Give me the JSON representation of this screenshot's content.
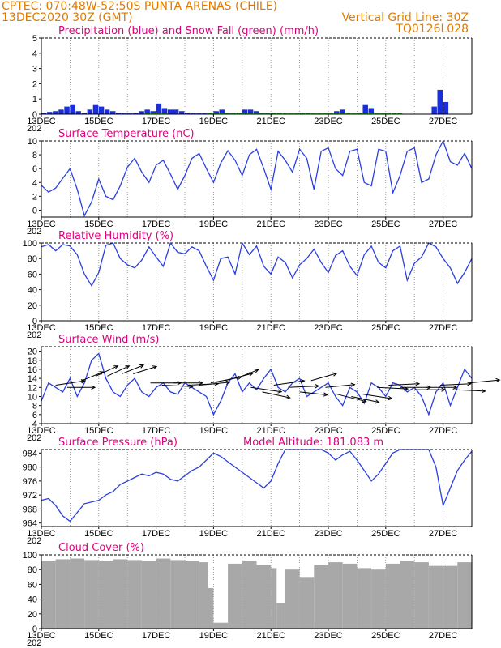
{
  "header": {
    "left_line1": "CPTEC:   070:48W-52:50S   PUNTA ARENAS (CHILE)",
    "left_line2": "13DEC2020 30Z (GMT)",
    "right_line2": "Vertical Grid Line: 30Z",
    "right_line3": "TQ0126L028"
  },
  "x_axis": {
    "year_label": "202",
    "day_labels": [
      "13DEC",
      "15DEC",
      "17DEC",
      "19DEC",
      "21DEC",
      "23DEC",
      "25DEC",
      "27DEC"
    ]
  },
  "colors": {
    "header": "#e07b00",
    "title": "#e0007e",
    "line": "#2a3fe0",
    "precip": "#1a2fd9",
    "snow": "#22aa22",
    "cloud": "#a8a8a8",
    "arrow": "#000000"
  },
  "chart_data": [
    {
      "type": "bar",
      "name": "precip",
      "title": "Precipitation (blue) and Snow Fall (green) (mm/h)",
      "ylim": [
        0,
        5
      ],
      "yticks": [
        "0",
        "1",
        "2",
        "3",
        "4",
        "5"
      ],
      "grid": true,
      "series": [
        {
          "name": "Precipitation",
          "x": [
            13.0,
            13.2,
            13.4,
            13.6,
            13.8,
            14.0,
            14.2,
            14.4,
            14.6,
            14.8,
            15.0,
            15.2,
            15.4,
            15.6,
            15.8,
            16.0,
            16.2,
            16.4,
            16.6,
            16.8,
            17.0,
            17.2,
            17.4,
            17.6,
            17.8,
            18.0,
            18.2,
            18.4,
            18.6,
            18.8,
            19.0,
            19.2,
            19.4,
            19.6,
            19.8,
            20.0,
            20.2,
            20.4,
            20.6,
            20.8,
            21.0,
            21.2,
            21.4,
            21.6,
            21.8,
            22.0,
            22.2,
            22.4,
            22.6,
            22.8,
            23.0,
            23.2,
            23.4,
            23.6,
            23.8,
            24.0,
            24.2,
            24.4,
            24.6,
            24.8,
            25.0,
            25.2,
            25.4,
            25.6,
            25.8,
            26.0,
            26.2,
            26.4,
            26.6,
            26.8,
            27.0,
            27.2,
            27.4,
            27.6,
            27.8
          ],
          "values": [
            0.1,
            0.15,
            0.2,
            0.3,
            0.5,
            0.6,
            0.2,
            0.1,
            0.3,
            0.6,
            0.5,
            0.3,
            0.2,
            0.1,
            0.05,
            0.05,
            0.1,
            0.2,
            0.3,
            0.2,
            0.7,
            0.4,
            0.3,
            0.3,
            0.2,
            0.1,
            0.05,
            0.05,
            0.05,
            0.05,
            0.2,
            0.3,
            0.05,
            0.05,
            0.05,
            0.3,
            0.3,
            0.2,
            0.05,
            0.05,
            0.0,
            0.0,
            0.0,
            0.0,
            0.0,
            0.0,
            0.05,
            0.0,
            0.0,
            0.0,
            0.0,
            0.2,
            0.3,
            0.0,
            0.0,
            0.0,
            0.6,
            0.4,
            0.0,
            0.0,
            0.0,
            0.0,
            0.0,
            0.0,
            0.0,
            0.0,
            0.0,
            0.0,
            0.5,
            1.6,
            0.8,
            0.0,
            0.0,
            0.0,
            0.0
          ]
        },
        {
          "name": "Snow Fall",
          "x": [
            16.6,
            16.8,
            17.0,
            17.2,
            18.8,
            19.0,
            19.2,
            19.4,
            19.6,
            19.8,
            20.0,
            20.2,
            20.4,
            20.6,
            20.8,
            21.0,
            21.2,
            21.4,
            21.6,
            21.8,
            22.0,
            22.2,
            22.4,
            22.6,
            22.8,
            23.0,
            23.2,
            23.4,
            23.6,
            23.8,
            24.0,
            24.2,
            24.4,
            24.6,
            24.8,
            25.0,
            25.2,
            25.4
          ],
          "values": [
            0.05,
            0.1,
            0.1,
            0.05,
            0.05,
            0.05,
            0.1,
            0.05,
            0.05,
            0.1,
            0.05,
            0.05,
            0.05,
            0.05,
            0.05,
            0.1,
            0.1,
            0.05,
            0.05,
            0.05,
            0.1,
            0.05,
            0.05,
            0.05,
            0.05,
            0.05,
            0.05,
            0.1,
            0.05,
            0.05,
            0.05,
            0.05,
            0.1,
            0.05,
            0.05,
            0.05,
            0.1,
            0.05
          ]
        }
      ]
    },
    {
      "type": "line",
      "name": "temperature",
      "title": "Surface Temperature (nC)",
      "ylim": [
        -1,
        10
      ],
      "yticks": [
        "0",
        "2",
        "4",
        "6",
        "8",
        "10"
      ],
      "grid": true,
      "x": [
        13.0,
        13.25,
        13.5,
        13.75,
        14.0,
        14.25,
        14.5,
        14.75,
        15.0,
        15.25,
        15.5,
        15.75,
        16.0,
        16.25,
        16.5,
        16.75,
        17.0,
        17.25,
        17.5,
        17.75,
        18.0,
        18.25,
        18.5,
        18.75,
        19.0,
        19.25,
        19.5,
        19.75,
        20.0,
        20.25,
        20.5,
        20.75,
        21.0,
        21.25,
        21.5,
        21.75,
        22.0,
        22.25,
        22.5,
        22.75,
        23.0,
        23.25,
        23.5,
        23.75,
        24.0,
        24.25,
        24.5,
        24.75,
        25.0,
        25.25,
        25.5,
        25.75,
        26.0,
        26.25,
        26.5,
        26.75,
        27.0,
        27.25,
        27.5,
        27.75,
        28.0
      ],
      "values": [
        3.6,
        2.6,
        3.2,
        4.6,
        6.0,
        3.0,
        -0.8,
        1.2,
        4.5,
        2.0,
        1.5,
        3.5,
        6.2,
        7.5,
        5.5,
        4.0,
        6.5,
        7.2,
        5.2,
        3.0,
        5.0,
        7.5,
        8.2,
        6.0,
        4.0,
        6.8,
        8.6,
        7.2,
        5.0,
        8.0,
        8.8,
        6.0,
        3.0,
        8.5,
        7.2,
        5.5,
        8.8,
        7.5,
        3.0,
        8.5,
        9.0,
        6.0,
        5.0,
        8.5,
        8.8,
        4.0,
        3.5,
        8.8,
        8.5,
        2.5,
        5.0,
        8.5,
        9.0,
        4.0,
        4.5,
        8.0,
        10.0,
        7.0,
        6.5,
        8.2,
        6.0
      ]
    },
    {
      "type": "line",
      "name": "humidity",
      "title": "Relative Humidity (%)",
      "ylim": [
        0,
        100
      ],
      "yticks": [
        "0",
        "20",
        "40",
        "60",
        "80",
        "100"
      ],
      "grid": true,
      "x": [
        13.0,
        13.25,
        13.5,
        13.75,
        14.0,
        14.25,
        14.5,
        14.75,
        15.0,
        15.25,
        15.5,
        15.75,
        16.0,
        16.25,
        16.5,
        16.75,
        17.0,
        17.25,
        17.5,
        17.75,
        18.0,
        18.25,
        18.5,
        18.75,
        19.0,
        19.25,
        19.5,
        19.75,
        20.0,
        20.25,
        20.5,
        20.75,
        21.0,
        21.25,
        21.5,
        21.75,
        22.0,
        22.25,
        22.5,
        22.75,
        23.0,
        23.25,
        23.5,
        23.75,
        24.0,
        24.25,
        24.5,
        24.75,
        25.0,
        25.25,
        25.5,
        25.75,
        26.0,
        26.25,
        26.5,
        26.75,
        27.0,
        27.25,
        27.5,
        27.75,
        28.0
      ],
      "values": [
        95,
        98,
        90,
        98,
        96,
        85,
        60,
        45,
        62,
        97,
        100,
        80,
        72,
        68,
        78,
        95,
        82,
        70,
        100,
        88,
        86,
        95,
        90,
        70,
        52,
        80,
        82,
        60,
        100,
        85,
        96,
        70,
        60,
        82,
        75,
        55,
        72,
        80,
        92,
        75,
        62,
        84,
        90,
        70,
        58,
        85,
        96,
        75,
        68,
        90,
        96,
        52,
        74,
        82,
        100,
        95,
        80,
        68,
        48,
        62,
        80
      ]
    },
    {
      "type": "line",
      "name": "wind",
      "title": "Surface Wind (m/s)",
      "ylim": [
        4,
        21
      ],
      "yticks": [
        "4",
        "6",
        "8",
        "10",
        "12",
        "14",
        "16",
        "18",
        "20"
      ],
      "grid": true,
      "x": [
        13.0,
        13.25,
        13.5,
        13.75,
        14.0,
        14.25,
        14.5,
        14.75,
        15.0,
        15.25,
        15.5,
        15.75,
        16.0,
        16.25,
        16.5,
        16.75,
        17.0,
        17.25,
        17.5,
        17.75,
        18.0,
        18.25,
        18.5,
        18.75,
        19.0,
        19.25,
        19.5,
        19.75,
        20.0,
        20.25,
        20.5,
        20.75,
        21.0,
        21.25,
        21.5,
        21.75,
        22.0,
        22.25,
        22.5,
        22.75,
        23.0,
        23.25,
        23.5,
        23.75,
        24.0,
        24.25,
        24.5,
        24.75,
        25.0,
        25.25,
        25.5,
        25.75,
        26.0,
        26.25,
        26.5,
        26.75,
        27.0,
        27.25,
        27.5,
        27.75,
        28.0
      ],
      "values": [
        9.0,
        13.0,
        12.0,
        11.0,
        14.0,
        10.0,
        13.0,
        18.0,
        19.5,
        14.0,
        11.0,
        10.0,
        12.5,
        14.0,
        11.0,
        10.0,
        12.0,
        13.0,
        11.0,
        10.5,
        13.0,
        12.0,
        11.0,
        10.0,
        6.0,
        9.0,
        13.0,
        15.0,
        11.0,
        13.0,
        11.5,
        14.0,
        16.0,
        12.0,
        11.0,
        13.0,
        14.0,
        10.0,
        11.0,
        12.0,
        13.0,
        10.0,
        8.0,
        12.0,
        11.0,
        8.5,
        13.0,
        12.0,
        10.0,
        13.0,
        12.5,
        11.0,
        12.0,
        10.0,
        6.0,
        11.0,
        13.0,
        8.0,
        12.0,
        16.0,
        14.0
      ],
      "vectors": {
        "x": [
          13.5,
          13.9,
          14.4,
          14.9,
          15.3,
          15.8,
          16.2,
          16.8,
          17.2,
          17.6,
          18.1,
          18.5,
          18.9,
          19.4,
          19.8,
          20.3,
          20.7,
          21.1,
          21.6,
          22.0,
          22.4,
          22.9,
          23.3,
          23.8,
          24.2,
          24.7,
          25.1,
          25.5,
          26.0,
          26.4,
          26.9,
          27.4,
          27.9
        ],
        "y": [
          12.5,
          12.0,
          13.5,
          14.5,
          14.5,
          15.0,
          15.0,
          13.0,
          12.5,
          13.0,
          12.5,
          12.5,
          13.0,
          13.5,
          14.0,
          12.0,
          11.0,
          12.5,
          12.0,
          11.0,
          13.5,
          12.0,
          10.5,
          10.0,
          10.5,
          12.0,
          12.5,
          12.0,
          11.5,
          12.0,
          12.5,
          11.5,
          13.0
        ],
        "u": [
          40,
          38,
          30,
          30,
          30,
          30,
          32,
          42,
          42,
          40,
          42,
          42,
          42,
          38,
          30,
          42,
          38,
          42,
          42,
          38,
          35,
          40,
          40,
          38,
          40,
          42,
          42,
          42,
          42,
          42,
          42,
          42,
          42
        ],
        "v": [
          -6,
          0,
          -12,
          -14,
          -14,
          -12,
          -10,
          0,
          2,
          0,
          -2,
          -4,
          -8,
          -10,
          -12,
          6,
          8,
          -6,
          -2,
          4,
          -10,
          -4,
          10,
          8,
          6,
          2,
          -2,
          0,
          0,
          0,
          -2,
          2,
          -4
        ]
      }
    },
    {
      "type": "line",
      "name": "pressure",
      "title": "Surface Pressure (hPa)",
      "annotation": "Model Altitude: 181.083 m",
      "ylim": [
        963,
        985
      ],
      "yticks": [
        "964",
        "968",
        "972",
        "976",
        "980",
        "984"
      ],
      "grid": true,
      "x": [
        13.0,
        13.25,
        13.5,
        13.75,
        14.0,
        14.25,
        14.5,
        14.75,
        15.0,
        15.25,
        15.5,
        15.75,
        16.0,
        16.25,
        16.5,
        16.75,
        17.0,
        17.25,
        17.5,
        17.75,
        18.0,
        18.25,
        18.5,
        18.75,
        19.0,
        19.25,
        19.5,
        19.75,
        20.0,
        20.25,
        20.5,
        20.75,
        21.0,
        21.25,
        21.5,
        21.75,
        22.0,
        22.25,
        22.5,
        22.75,
        23.0,
        23.25,
        23.5,
        23.75,
        24.0,
        24.25,
        24.5,
        24.75,
        25.0,
        25.25,
        25.5,
        25.75,
        26.0,
        26.25,
        26.5,
        26.75,
        27.0,
        27.25,
        27.5,
        27.75,
        28.0
      ],
      "values": [
        970.5,
        971.0,
        969.0,
        966.0,
        964.5,
        967.0,
        969.5,
        970.0,
        970.5,
        972.0,
        973.0,
        975.0,
        976.0,
        977.0,
        978.0,
        977.5,
        978.5,
        978.0,
        976.5,
        976.0,
        977.5,
        979.0,
        980.0,
        982.0,
        984.0,
        983.0,
        981.5,
        980.0,
        978.5,
        977.0,
        975.5,
        974.0,
        976.0,
        981.0,
        985.0,
        985.0,
        985.0,
        985.0,
        985.0,
        985.0,
        984.0,
        982.0,
        983.5,
        984.5,
        982.0,
        979.0,
        976.0,
        978.0,
        981.0,
        984.0,
        985.0,
        985.0,
        985.0,
        985.0,
        985.0,
        980.0,
        969.0,
        974.0,
        979.0,
        982.0,
        984.5
      ]
    },
    {
      "type": "area",
      "name": "cloud",
      "title": "Cloud Cover (%)",
      "ylim": [
        0,
        100
      ],
      "yticks": [
        "0",
        "20",
        "40",
        "60",
        "80",
        "100"
      ],
      "grid": true,
      "x": [
        13.0,
        13.5,
        14.0,
        14.5,
        15.0,
        15.5,
        16.0,
        16.5,
        17.0,
        17.5,
        18.0,
        18.5,
        18.8,
        19.0,
        19.5,
        20.0,
        20.5,
        21.0,
        21.2,
        21.5,
        22.0,
        22.5,
        23.0,
        23.5,
        24.0,
        24.5,
        25.0,
        25.5,
        26.0,
        26.5,
        27.0,
        27.5,
        28.0
      ],
      "values": [
        92,
        94,
        95,
        93,
        92,
        94,
        93,
        92,
        95,
        93,
        92,
        90,
        55,
        8,
        88,
        92,
        86,
        82,
        35,
        80,
        70,
        86,
        90,
        88,
        82,
        80,
        88,
        92,
        90,
        85,
        85,
        90,
        92
      ]
    }
  ]
}
